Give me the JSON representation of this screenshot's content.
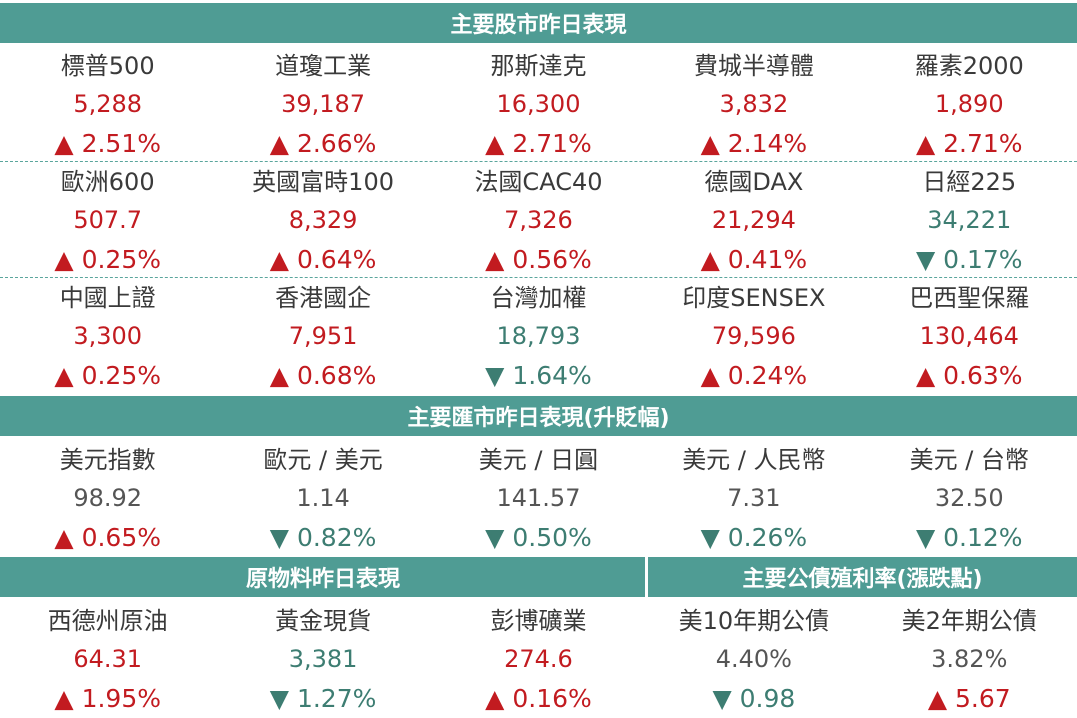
{
  "stock_header": "主要股市昨日表現",
  "stock_rows": [
    [
      {
        "name": "標普500",
        "value": "5,288",
        "change": "▲ 2.51%",
        "dir": "up"
      },
      {
        "name": "道瓊工業",
        "value": "39,187",
        "change": "▲ 2.66%",
        "dir": "up"
      },
      {
        "name": "那斯達克",
        "value": "16,300",
        "change": "▲ 2.71%",
        "dir": "up"
      },
      {
        "name": "費城半導體",
        "value": "3,832",
        "change": "▲ 2.14%",
        "dir": "up"
      },
      {
        "name": "羅素2000",
        "value": "1,890",
        "change": "▲ 2.71%",
        "dir": "up"
      }
    ],
    [
      {
        "name": "歐洲600",
        "value": "507.7",
        "change": "▲ 0.25%",
        "dir": "up"
      },
      {
        "name": "英國富時100",
        "value": "8,329",
        "change": "▲ 0.64%",
        "dir": "up"
      },
      {
        "name": "法國CAC40",
        "value": "7,326",
        "change": "▲ 0.56%",
        "dir": "up"
      },
      {
        "name": "德國DAX",
        "value": "21,294",
        "change": "▲ 0.41%",
        "dir": "up"
      },
      {
        "name": "日經225",
        "value": "34,221",
        "change": "▼ 0.17%",
        "dir": "down"
      }
    ],
    [
      {
        "name": "中國上證",
        "value": "3,300",
        "change": "▲ 0.25%",
        "dir": "up"
      },
      {
        "name": "香港國企",
        "value": "7,951",
        "change": "▲ 0.68%",
        "dir": "up"
      },
      {
        "name": "台灣加權",
        "value": "18,793",
        "change": "▼ 1.64%",
        "dir": "down"
      },
      {
        "name": "印度SENSEX",
        "value": "79,596",
        "change": "▲ 0.24%",
        "dir": "up"
      },
      {
        "name": "巴西聖保羅",
        "value": "130,464",
        "change": "▲ 0.63%",
        "dir": "up"
      }
    ]
  ],
  "fx_header": "主要匯市昨日表現(升貶幅)",
  "fx_row": [
    {
      "name": "美元指數",
      "value": "98.92",
      "change": "▲ 0.65%",
      "dir": "up",
      "value_dir": "neutral"
    },
    {
      "name": "歐元 / 美元",
      "value": "1.14",
      "change": "▼ 0.82%",
      "dir": "down",
      "value_dir": "neutral"
    },
    {
      "name": "美元 / 日圓",
      "value": "141.57",
      "change": "▼ 0.50%",
      "dir": "down",
      "value_dir": "neutral"
    },
    {
      "name": "美元 / 人民幣",
      "value": "7.31",
      "change": "▼ 0.26%",
      "dir": "down",
      "value_dir": "neutral"
    },
    {
      "name": "美元 / 台幣",
      "value": "32.50",
      "change": "▼ 0.12%",
      "dir": "down",
      "value_dir": "neutral"
    }
  ],
  "commodity_header": "原物料昨日表現",
  "bond_header": "主要公債殖利率(漲跌點)",
  "bottom_row": [
    {
      "name": "西德州原油",
      "value": "64.31",
      "change": "▲ 1.95%",
      "dir": "up",
      "value_dir": "up"
    },
    {
      "name": "黃金現貨",
      "value": "3,381",
      "change": "▼ 1.27%",
      "dir": "down",
      "value_dir": "down"
    },
    {
      "name": "彭博礦業",
      "value": "274.6",
      "change": "▲ 0.16%",
      "dir": "up",
      "value_dir": "up"
    },
    {
      "name": "美10年期公債",
      "value": "4.40%",
      "change": "▼ 0.98",
      "dir": "down",
      "value_dir": "neutral"
    },
    {
      "name": "美2年期公債",
      "value": "3.82%",
      "change": "▲ 5.67",
      "dir": "up",
      "value_dir": "neutral"
    }
  ],
  "colors": {
    "header_bg": "#4f9c94",
    "up": "#c21b20",
    "down": "#3d7d72",
    "neutral": "#555555"
  }
}
